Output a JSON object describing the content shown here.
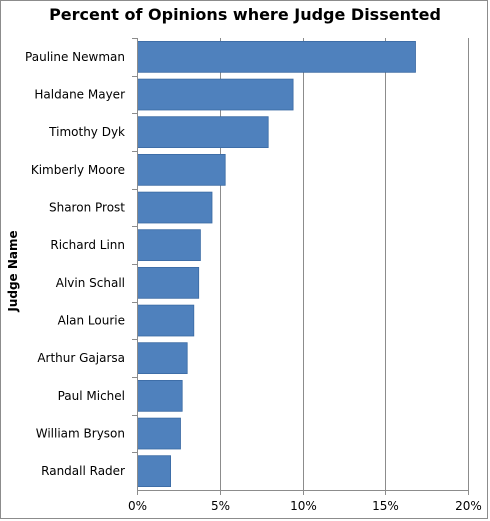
{
  "chart_data": {
    "type": "bar",
    "orientation": "horizontal",
    "title": "Percent of Opinions where Judge Dissented",
    "xlabel": "",
    "ylabel": "Judge Name",
    "categories": [
      "Pauline Newman",
      "Haldane Mayer",
      "Timothy Dyk",
      "Kimberly Moore",
      "Sharon Prost",
      "Richard Linn",
      "Alvin Schall",
      "Alan Lourie",
      "Arthur Gajarsa",
      "Paul Michel",
      "William Bryson",
      "Randall Rader"
    ],
    "values": [
      16.8,
      9.4,
      7.9,
      5.3,
      4.5,
      3.8,
      3.7,
      3.4,
      3.0,
      2.7,
      2.6,
      2.0
    ],
    "xlim": [
      0,
      20
    ],
    "xticks": [
      "0%",
      "5%",
      "10%",
      "15%",
      "20%"
    ],
    "xgrid": true,
    "legend": "none",
    "colors": {
      "bar": "#4f81bd",
      "bar_edge": "#3a6aa3",
      "grid": "#8c8c8c"
    }
  }
}
